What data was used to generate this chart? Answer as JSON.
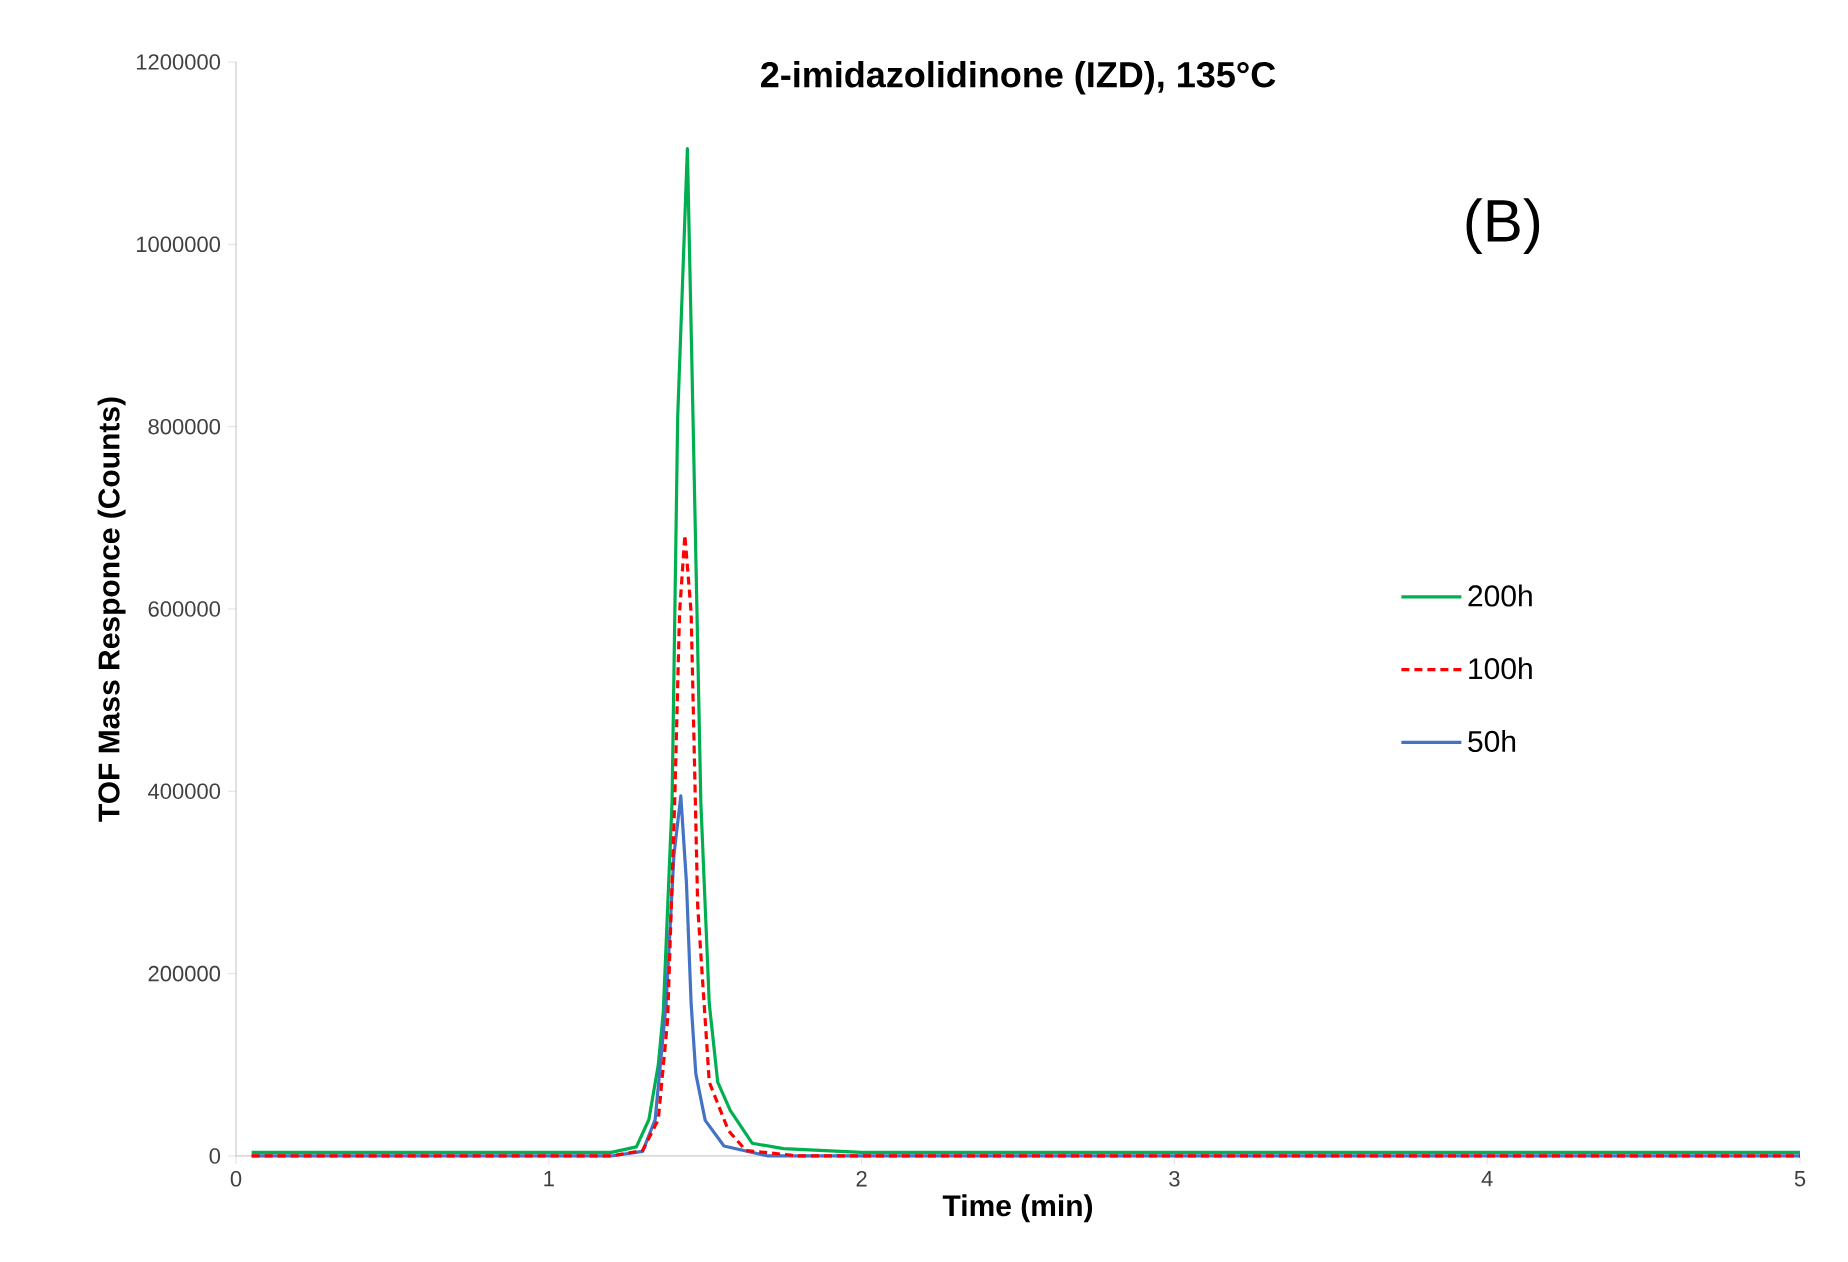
{
  "chart_data": {
    "type": "line",
    "title": "2-imidazolidinone (IZD),  135°C",
    "xlabel": "Time (min)",
    "ylabel": "TOF Mass Responce (Counts)",
    "annotations": [
      "(B)"
    ],
    "xlim": [
      0,
      5
    ],
    "xticks": [
      0,
      1,
      2,
      3,
      4,
      5
    ],
    "ylim": [
      0,
      1200000
    ],
    "yticks": [
      0,
      200000,
      400000,
      600000,
      800000,
      1000000,
      1200000
    ],
    "grid": false,
    "legend": "right",
    "series": [
      {
        "name": "200h",
        "color": "#00b050",
        "line_style": "solid",
        "x": [
          0.05,
          0.5,
          1.0,
          1.2,
          1.28,
          1.32,
          1.35,
          1.366,
          1.394,
          1.412,
          1.443,
          1.461,
          1.486,
          1.513,
          1.54,
          1.58,
          1.65,
          1.75,
          2.0,
          3.0,
          4.0,
          5.0
        ],
        "values": [
          4000,
          4000,
          4000,
          4000,
          10000,
          40000,
          100000,
          158000,
          388000,
          810000,
          1105000,
          810000,
          388000,
          167000,
          81000,
          50000,
          14000,
          8000,
          4000,
          4000,
          4000,
          4000
        ]
      },
      {
        "name": "100h",
        "color": "#ff0000",
        "line_style": "dashed",
        "x": [
          0.05,
          0.5,
          1.0,
          1.2,
          1.3,
          1.35,
          1.38,
          1.403,
          1.418,
          1.435,
          1.455,
          1.476,
          1.513,
          1.574,
          1.63,
          1.8,
          2.0,
          3.0,
          4.0,
          5.0
        ],
        "values": [
          0,
          0,
          0,
          0,
          6000,
          40000,
          150000,
          395000,
          596000,
          681000,
          596000,
          274000,
          81000,
          28000,
          6000,
          0,
          0,
          0,
          0,
          0
        ]
      },
      {
        "name": "50h",
        "color": "#4472c4",
        "line_style": "solid",
        "x": [
          0.05,
          0.5,
          1.0,
          1.2,
          1.3,
          1.34,
          1.375,
          1.4,
          1.422,
          1.44,
          1.455,
          1.47,
          1.5,
          1.56,
          1.7,
          2.0,
          3.0,
          4.0,
          5.0
        ],
        "values": [
          0,
          0,
          0,
          0,
          5000,
          40000,
          167000,
          330000,
          395000,
          300000,
          167000,
          90000,
          39000,
          11000,
          0,
          0,
          0,
          0,
          0
        ]
      }
    ]
  }
}
